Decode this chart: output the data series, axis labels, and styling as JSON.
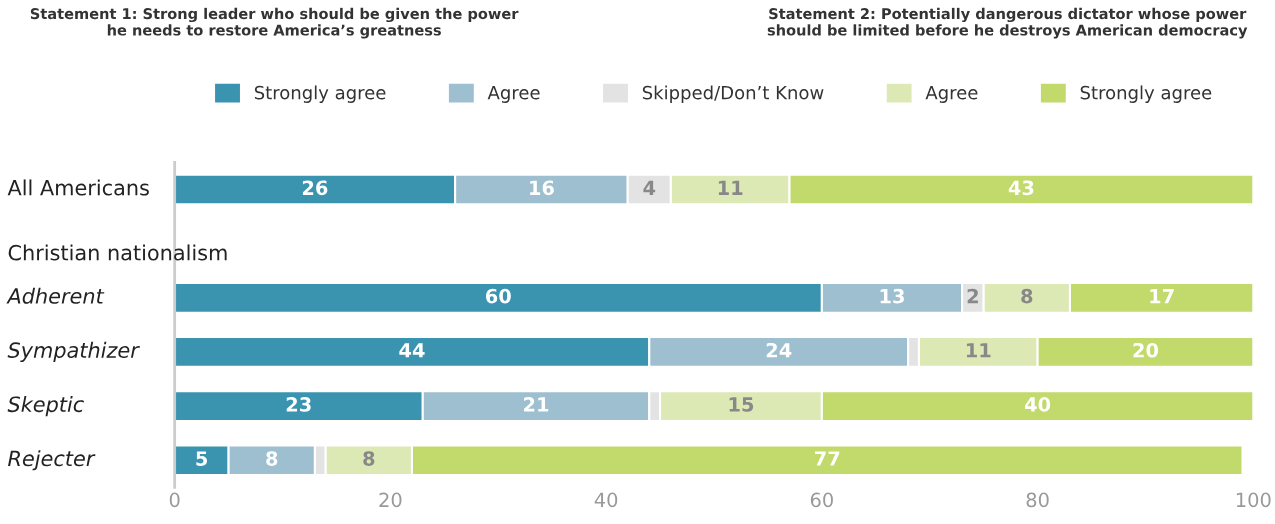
{
  "chart_data": {
    "type": "bar",
    "orientation": "horizontal",
    "stacked": true,
    "categories": [
      "All Americans",
      null,
      "Adherent",
      "Sympathizer",
      "Skeptic",
      "Rejecter"
    ],
    "series": [
      {
        "name": "Strongly agree",
        "color": "#3a94b0",
        "values": [
          26,
          null,
          60,
          44,
          23,
          5
        ],
        "value_labels": [
          "26",
          null,
          "60",
          "44",
          "23",
          "5"
        ]
      },
      {
        "name": "Agree",
        "color": "#9dbfcf",
        "values": [
          16,
          null,
          13,
          24,
          21,
          8
        ],
        "value_labels": [
          "16",
          null,
          "13",
          "24",
          "21",
          "8"
        ]
      },
      {
        "name": "Skipped/Don’t Know",
        "color": "#e3e3e3",
        "values": [
          4,
          null,
          2,
          1,
          1,
          1
        ],
        "value_labels": [
          "4",
          null,
          "2",
          null,
          null,
          null
        ]
      },
      {
        "name": "Agree",
        "color": "#dde9b5",
        "values": [
          11,
          null,
          8,
          11,
          15,
          8
        ],
        "value_labels": [
          "11",
          null,
          "8",
          "11",
          "15",
          "8"
        ]
      },
      {
        "name": "Strongly agree",
        "color": "#c2d96b",
        "values": [
          43,
          null,
          17,
          20,
          40,
          77
        ],
        "value_labels": [
          "43",
          null,
          "17",
          "20",
          "40",
          "77"
        ]
      }
    ],
    "xlim": [
      0,
      100
    ],
    "xticks": [
      0,
      20,
      40,
      60,
      80,
      100
    ],
    "grid": false,
    "legend": "top",
    "annotations": [
      "Statement 1: Strong leader who should be given the power\nhe needs to restore America’s greatness",
      "Statement 2: Potentially dangerous dictator whose power\nshould be limited before he destroys American democracy",
      "Christian nationalism"
    ]
  }
}
